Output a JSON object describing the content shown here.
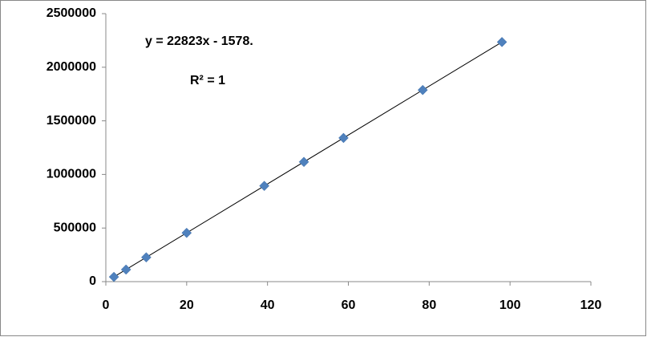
{
  "chart_data": {
    "type": "scatter",
    "annotations": [
      "y = 22823x - 1578.",
      "R² = 1"
    ],
    "series": [
      {
        "color": "#4f81bd",
        "x": [
          2,
          5,
          10,
          20,
          39.2,
          49,
          58.8,
          78.4,
          98
        ],
        "values": [
          44068,
          112537,
          226652,
          454882,
          893084,
          1116749,
          1340413,
          1787745,
          2235076
        ]
      }
    ],
    "trendline": true,
    "xlim": [
      0,
      120
    ],
    "xticks": [
      0,
      20,
      40,
      60,
      80,
      100,
      120
    ],
    "ylim": [
      0,
      2500000
    ],
    "yticks": [
      0,
      500000,
      1000000,
      1500000,
      2000000,
      2500000
    ],
    "grid": false
  }
}
